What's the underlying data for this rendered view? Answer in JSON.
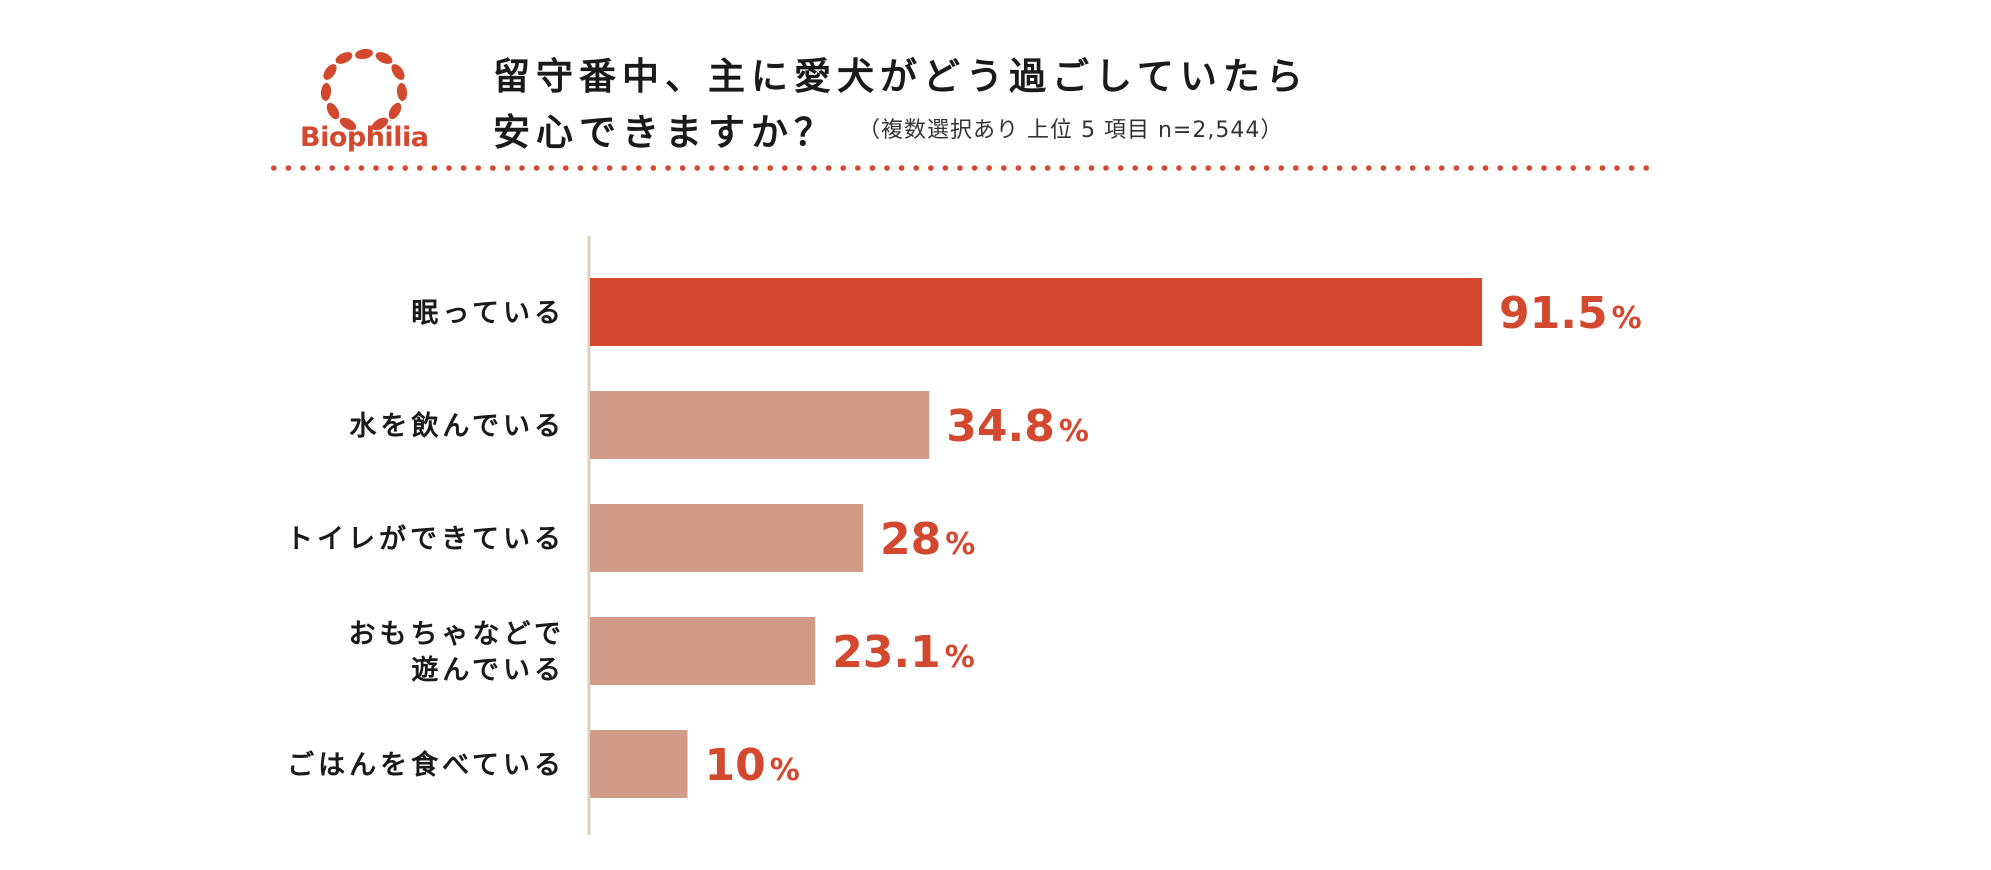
{
  "header": {
    "logo_text": "Biophilia",
    "title_line1": "留守番中、主に愛犬がどう過ごしていたら",
    "title_line2": "安心できますか？",
    "subtitle": "（複数選択あり 上位 5 項目 n=2,544）"
  },
  "colors": {
    "accent": "#d2492f",
    "bar_primary": "#d54930",
    "bar_secondary": "#d19b87",
    "axis": "#d9cfc0",
    "dots": "#d2492f"
  },
  "chart_data": {
    "type": "bar",
    "orientation": "horizontal",
    "categories": [
      [
        "眠っている"
      ],
      [
        "水を飲んでいる"
      ],
      [
        "トイレができている"
      ],
      [
        "おもちゃなどで",
        "遊んでいる"
      ],
      [
        "ごはんを食べている"
      ]
    ],
    "values": [
      91.5,
      34.8,
      28,
      23.1,
      10
    ],
    "value_labels": [
      "91.5",
      "34.8",
      "28",
      "23.1",
      "10"
    ],
    "unit": "%",
    "xlim": [
      0,
      100
    ],
    "grid": false,
    "legend": "none"
  }
}
